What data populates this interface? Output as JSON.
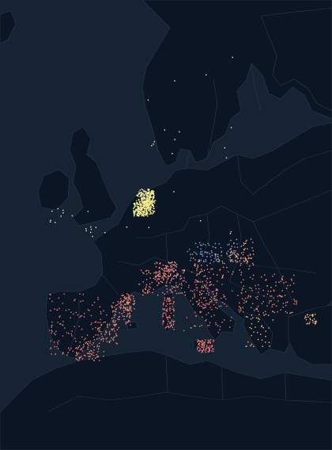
{
  "map": {
    "colors": {
      "sea": "#152332",
      "land": "#0c1524",
      "border": "#27384a"
    },
    "layers": [
      {
        "name": "netherlands-cluster",
        "color": "#f7ee8f",
        "count": 520
      },
      {
        "name": "iberia-east-coast",
        "color": "#f58a7a",
        "count": 260
      },
      {
        "name": "iberia-interior",
        "color": "#f07a72",
        "count": 120
      },
      {
        "name": "france-south",
        "color": "#f28a7d",
        "count": 220
      },
      {
        "name": "italy",
        "color": "#f07c74",
        "count": 340
      },
      {
        "name": "alps",
        "color": "#7fa7d8",
        "count": 80
      },
      {
        "name": "central-europe",
        "color": "#f2a07f",
        "count": 130
      },
      {
        "name": "balkans",
        "color": "#f08a70",
        "count": 130
      },
      {
        "name": "greece",
        "color": "#f5c37a",
        "count": 70
      },
      {
        "name": "scattered-north",
        "color": "#f0f0d8",
        "count": 40
      }
    ]
  }
}
